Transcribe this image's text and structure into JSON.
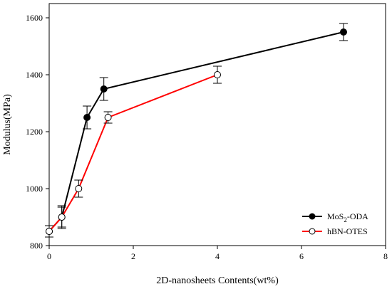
{
  "chart_data": {
    "type": "line",
    "xlabel": "2D-nanosheets Contents(wt%)",
    "ylabel": "Modulus(MPa)",
    "xlim": [
      0,
      8
    ],
    "ylim": [
      800,
      1650
    ],
    "x_ticks": [
      0,
      2,
      4,
      6,
      8
    ],
    "y_ticks": [
      800,
      1000,
      1200,
      1400,
      1600
    ],
    "grid": false,
    "legend_position": "bottom-right",
    "series": [
      {
        "name": "MoS2-ODA",
        "name_main": "MoS",
        "name_sub": "2",
        "name_tail": "-ODA",
        "color": "#000000",
        "marker": "filled-circle",
        "x": [
          0,
          0.3,
          0.9,
          1.3,
          7
        ],
        "y": [
          850,
          900,
          1250,
          1350,
          1550
        ],
        "error": [
          20,
          40,
          40,
          40,
          30
        ]
      },
      {
        "name": "hBN-OTES",
        "color": "#ff0000",
        "marker": "open-circle",
        "x": [
          0,
          0.3,
          0.7,
          1.4,
          4
        ],
        "y": [
          850,
          900,
          1000,
          1250,
          1400
        ],
        "error": [
          20,
          35,
          30,
          20,
          30
        ]
      }
    ]
  }
}
